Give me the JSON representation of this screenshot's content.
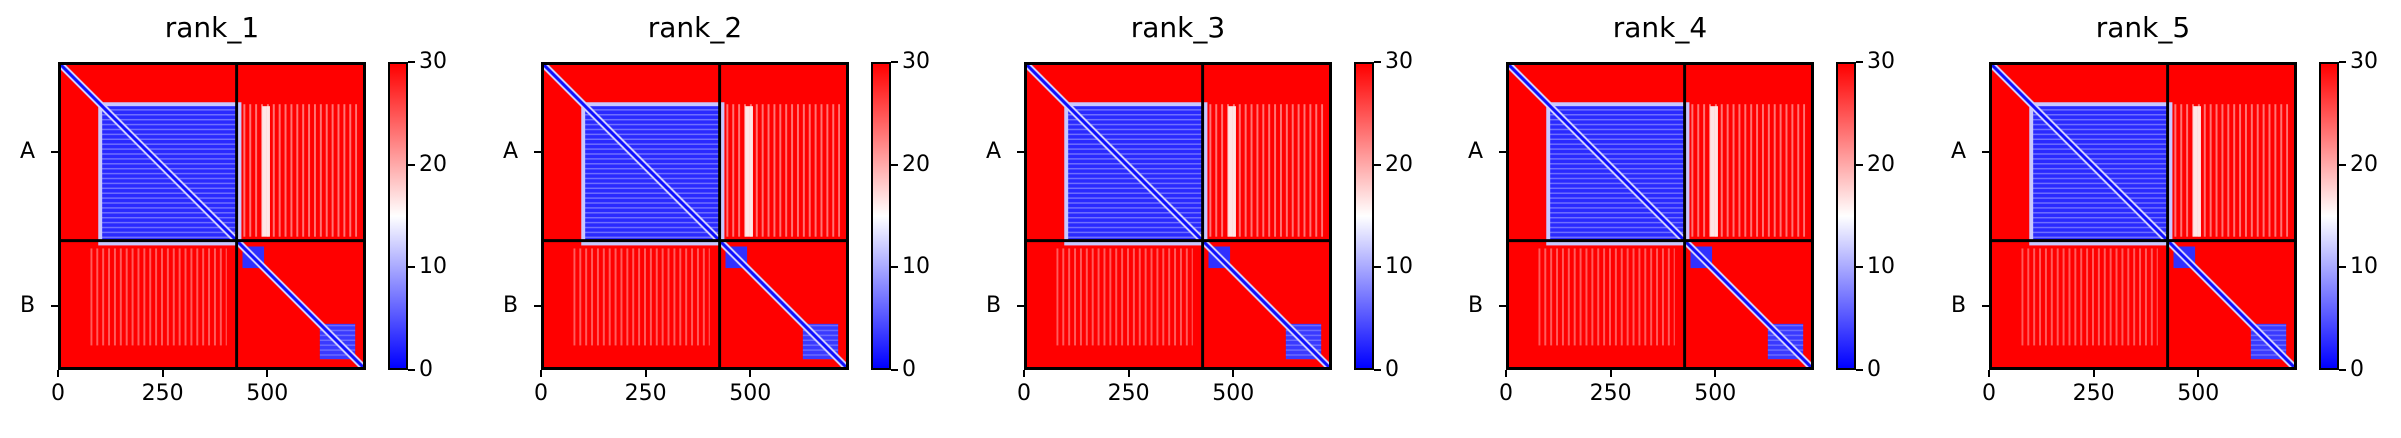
{
  "chart_data": {
    "type": "heatmap",
    "colormap": [
      "#0000ff",
      "#ffffff",
      "#ff0000"
    ],
    "colorbar": {
      "range": [
        0,
        30
      ],
      "ticks": [
        0,
        10,
        20,
        30
      ]
    },
    "x_range": [
      0,
      736
    ],
    "x_ticks": [
      0,
      250,
      500
    ],
    "chains": [
      {
        "label": "A",
        "start": 0,
        "end": 428
      },
      {
        "label": "B",
        "start": 428,
        "end": 736
      }
    ],
    "panels": [
      {
        "title": "rank_1"
      },
      {
        "title": "rank_2"
      },
      {
        "title": "rank_3"
      },
      {
        "title": "rank_4"
      },
      {
        "title": "rank_5"
      }
    ]
  }
}
